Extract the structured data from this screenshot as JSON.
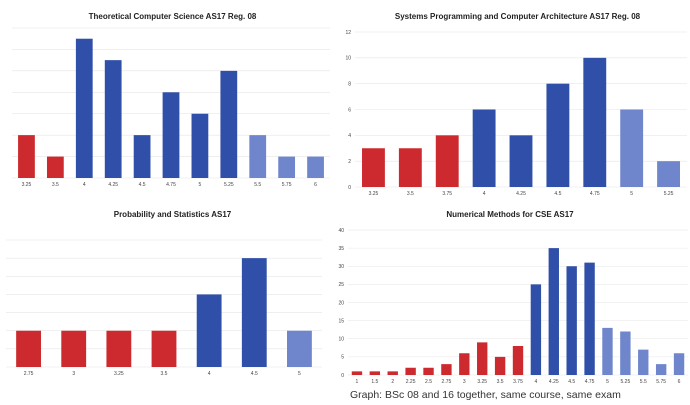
{
  "caption": "Graph: BSc 08 and 16 together, same course, same exam",
  "colors": {
    "fail": "#cc2a2e",
    "pass_dark": "#2f4fa8",
    "pass_light": "#6f86cc",
    "grid": "#e6e6e6"
  },
  "chart_data": [
    {
      "type": "bar",
      "title": "Theoretical Computer Science AS17 Reg. 08",
      "categories": [
        "3.25",
        "3.5",
        "4",
        "4.25",
        "4.5",
        "4.75",
        "5",
        "5.25",
        "5.5",
        "5.75",
        "6"
      ],
      "values": [
        4,
        2,
        13,
        11,
        4,
        8,
        6,
        10,
        4,
        2,
        2
      ],
      "colors": [
        "fail",
        "fail",
        "pass_dark",
        "pass_dark",
        "pass_dark",
        "pass_dark",
        "pass_dark",
        "pass_dark",
        "pass_light",
        "pass_light",
        "pass_light"
      ],
      "ylim": [
        0,
        14
      ],
      "grid": true,
      "show_yticks": false
    },
    {
      "type": "bar",
      "title": "Systems Programming and Computer Architecture AS17 Reg. 08",
      "categories": [
        "3.25",
        "3.5",
        "3.75",
        "4",
        "4.25",
        "4.5",
        "4.75",
        "5",
        "5.25"
      ],
      "values": [
        3,
        3,
        4,
        6,
        4,
        8,
        10,
        6,
        2
      ],
      "colors": [
        "fail",
        "fail",
        "fail",
        "pass_dark",
        "pass_dark",
        "pass_dark",
        "pass_dark",
        "pass_light",
        "pass_light"
      ],
      "ylim": [
        0,
        12
      ],
      "yticks": [
        "0",
        "2",
        "4",
        "6",
        "8",
        "10",
        "12"
      ],
      "grid": true,
      "show_yticks": true
    },
    {
      "type": "bar",
      "title": "Probability and Statistics AS17",
      "categories": [
        "2.75",
        "3",
        "3.25",
        "3.5",
        "4",
        "4.5",
        "5"
      ],
      "values": [
        1,
        1,
        1,
        1,
        2,
        3,
        1
      ],
      "colors": [
        "fail",
        "fail",
        "fail",
        "fail",
        "pass_dark",
        "pass_dark",
        "pass_light"
      ],
      "ylim": [
        0,
        3.5
      ],
      "grid": true,
      "show_yticks": false
    },
    {
      "type": "bar",
      "title": "Numerical Methods for CSE AS17",
      "categories": [
        "1",
        "1.5",
        "2",
        "2.25",
        "2.5",
        "2.75",
        "3",
        "3.25",
        "3.5",
        "3.75",
        "4",
        "4.25",
        "4.5",
        "4.75",
        "5",
        "5.25",
        "5.5",
        "5.75",
        "6"
      ],
      "values": [
        1,
        1,
        1,
        2,
        2,
        3,
        6,
        9,
        5,
        8,
        25,
        35,
        30,
        31,
        13,
        12,
        7,
        3,
        6
      ],
      "colors": [
        "fail",
        "fail",
        "fail",
        "fail",
        "fail",
        "fail",
        "fail",
        "fail",
        "fail",
        "fail",
        "pass_dark",
        "pass_dark",
        "pass_dark",
        "pass_dark",
        "pass_light",
        "pass_light",
        "pass_light",
        "pass_light",
        "pass_light"
      ],
      "ylim": [
        0,
        40
      ],
      "yticks": [
        "0",
        "5",
        "10",
        "15",
        "20",
        "25",
        "30",
        "35",
        "40"
      ],
      "grid": true,
      "show_yticks": true
    }
  ]
}
